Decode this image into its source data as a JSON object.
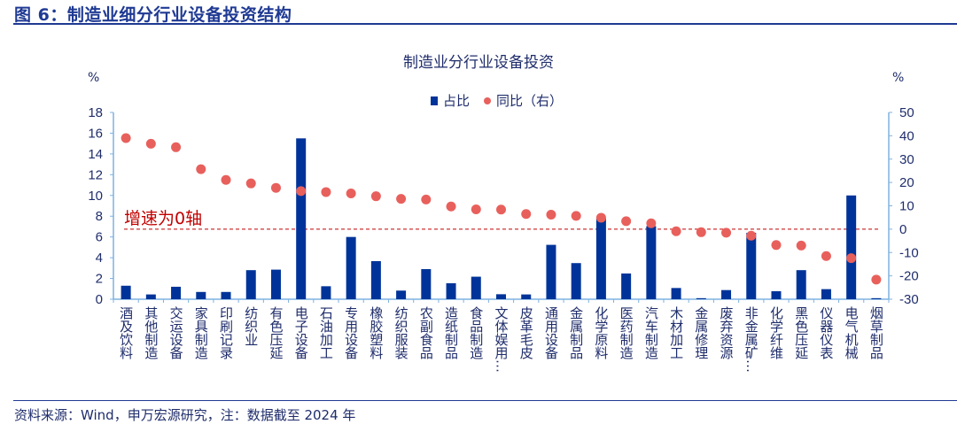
{
  "figure_title": "图 6：制造业细分行业设备投资结构",
  "source": "资料来源：Wind，申万宏源研究，注：数据截至 2024 年",
  "chart_data": {
    "type": "bar+scatter",
    "title": "制造业分行业设备投资",
    "left_unit": "%",
    "right_unit": "%",
    "annotation": "增速为0轴",
    "categories": [
      "酒及饮料",
      "其他制造",
      "交运设备",
      "家具制造",
      "印刷记录",
      "纺织业",
      "有色压延",
      "电子设备",
      "石油加工",
      "专用设备",
      "橡胶塑料",
      "纺织服装",
      "农副食品",
      "造纸制品",
      "食品制造",
      "文体娱用…",
      "皮革毛皮",
      "通用设备",
      "金属制品",
      "化学原料",
      "医药制造",
      "汽车制造",
      "木材加工",
      "金属修理",
      "废弃资源",
      "非金属矿…",
      "化学纤维",
      "黑色压延",
      "仪器仪表",
      "电气机械",
      "烟草制品"
    ],
    "series": [
      {
        "name": "占比",
        "type": "bar",
        "axis": "left",
        "color": "#003399",
        "values": [
          1.3,
          0.46,
          1.2,
          0.7,
          0.7,
          2.8,
          2.85,
          15.5,
          1.25,
          6.0,
          3.67,
          0.83,
          2.9,
          1.54,
          2.17,
          0.48,
          0.46,
          5.24,
          3.48,
          7.8,
          2.48,
          7.04,
          1.08,
          0.1,
          0.88,
          6.4,
          0.77,
          2.8,
          0.97,
          10.0,
          0.1
        ]
      },
      {
        "name": "同比（右）",
        "type": "scatter",
        "axis": "right",
        "color": "#e8605c",
        "values": [
          39.0,
          36.6,
          35.1,
          25.7,
          21.1,
          19.6,
          17.7,
          16.3,
          15.9,
          15.3,
          14.1,
          13.0,
          12.7,
          9.7,
          8.5,
          8.4,
          6.5,
          6.2,
          5.7,
          4.9,
          3.4,
          2.5,
          -0.9,
          -1.3,
          -1.5,
          -2.8,
          -6.8,
          -7.0,
          -11.5,
          -12.4,
          -21.6
        ]
      }
    ],
    "left_axis": {
      "range": [
        0,
        18
      ],
      "ticks": [
        0,
        2,
        4,
        6,
        8,
        10,
        12,
        14,
        16,
        18
      ]
    },
    "right_axis": {
      "range": [
        -30,
        50
      ],
      "ticks": [
        -30,
        -20,
        -10,
        0,
        10,
        20,
        30,
        40,
        50
      ]
    },
    "zero_line_color": "#c00000",
    "legend_placement": "top-center",
    "grid": false
  }
}
